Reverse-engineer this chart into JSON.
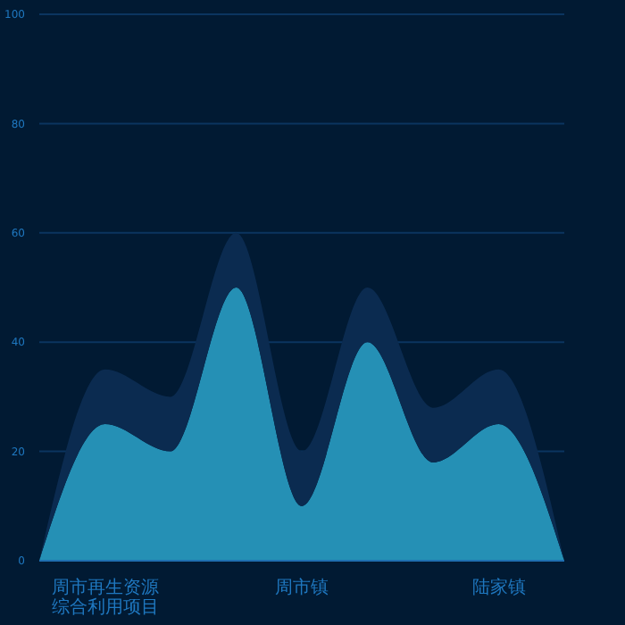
{
  "chart_data": {
    "type": "area",
    "stacked": true,
    "categories": [
      null,
      "周市再生资源综合利用项目",
      null,
      null,
      "周市镇",
      null,
      null,
      "陆家镇",
      null
    ],
    "series": [
      {
        "color": "#2590b5",
        "values": [
          0,
          25,
          20,
          50,
          10,
          40,
          18,
          25,
          0
        ]
      },
      {
        "color": "#0b2b50",
        "values": [
          0,
          10,
          10,
          10,
          10,
          10,
          10,
          10,
          0
        ]
      }
    ],
    "ylim": [
      0,
      100
    ],
    "yticks": [
      0,
      20,
      40,
      60,
      80,
      100
    ],
    "grid": "y",
    "legend": false
  }
}
